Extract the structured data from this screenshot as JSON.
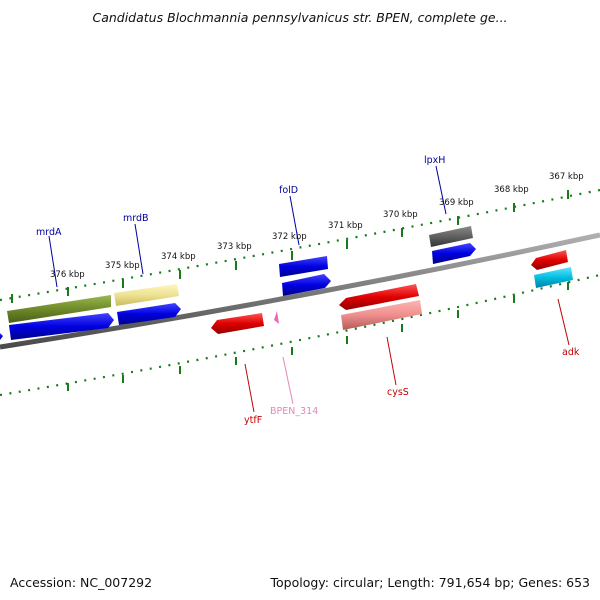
{
  "title": "Candidatus Blochmannia pennsylvanicus str. BPEN, complete ge...",
  "footer": {
    "accession": "Accession: NC_007292",
    "summary": "Topology: circular; Length: 791,654 bp; Genes: 653"
  },
  "axis_labels": [
    "376 kbp",
    "375 kbp",
    "374 kbp",
    "373 kbp",
    "372 kbp",
    "371 kbp",
    "370 kbp",
    "369 kbp",
    "368 kbp",
    "367 kbp"
  ],
  "gene_labels": [
    {
      "name": "mrdA",
      "color": "#00009e"
    },
    {
      "name": "mrdB",
      "color": "#00009e"
    },
    {
      "name": "folD",
      "color": "#00009e"
    },
    {
      "name": "lpxH",
      "color": "#00009e"
    },
    {
      "name": "ytfF",
      "color": "#c00000"
    },
    {
      "name": "BPEN_314",
      "color": "#e586b8"
    },
    {
      "name": "cysS",
      "color": "#c00000"
    },
    {
      "name": "adk",
      "color": "#c00000"
    }
  ],
  "colors": {
    "backbone": "#7a7a7a",
    "tick": "#1a7a1a",
    "blue_gene": "#0000e0",
    "red_gene": "#e00000",
    "olive_gene": "#6f8a2a",
    "khaki_gene": "#eee293",
    "pink_gene": "#ef8e8e",
    "gray_gene": "#606060",
    "cyan_gene": "#00bfe0",
    "magenta_gene": "#ee66bb"
  }
}
